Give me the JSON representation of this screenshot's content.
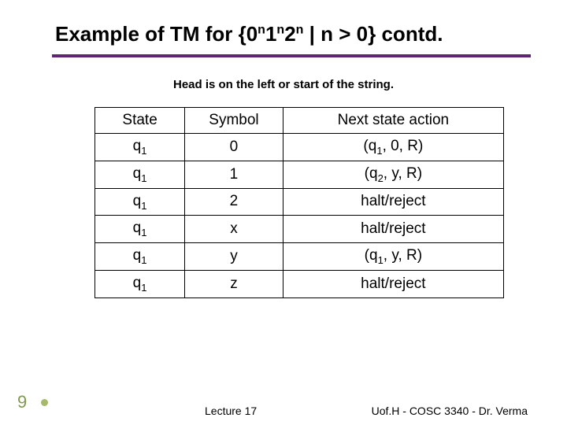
{
  "title_html": "Example of TM for {0<sup>n</sup>1<sup>n</sup>2<sup>n</sup> | n > 0} contd.",
  "subtitle": "Head is on the left or start of the string.",
  "table": {
    "columns": [
      "State",
      "Symbol",
      "Next state action"
    ],
    "rows": [
      [
        "q<sub>1</sub>",
        "0",
        "(q<sub>1</sub>, 0, R)"
      ],
      [
        "q<sub>1</sub>",
        "1",
        "(q<sub>2</sub>, y, R)"
      ],
      [
        "q<sub>1</sub>",
        "2",
        "halt/reject"
      ],
      [
        "q<sub>1</sub>",
        "x",
        "halt/reject"
      ],
      [
        "q<sub>1</sub>",
        "y",
        "(q<sub>1</sub>, y, R)"
      ],
      [
        "q<sub>1</sub>",
        "z",
        "halt/reject"
      ]
    ],
    "border_color": "#000000",
    "cell_fontsize": 19
  },
  "slide_number": "9",
  "footer_left": "Lecture 17",
  "footer_right": "Uof.H - COSC 3340 - Dr. Verma",
  "colors": {
    "title_underline": "#5e2478",
    "slide_number": "#80994d",
    "bullet": "#a6b86a",
    "background": "#ffffff"
  }
}
